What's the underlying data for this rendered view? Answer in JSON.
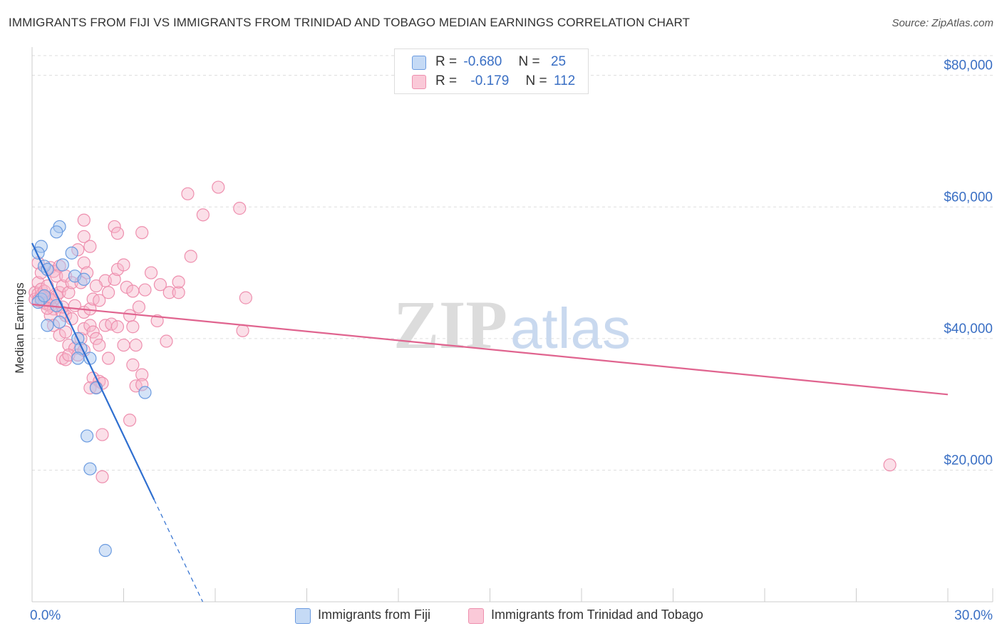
{
  "header": {
    "title": "IMMIGRANTS FROM FIJI VS IMMIGRANTS FROM TRINIDAD AND TOBAGO MEDIAN EARNINGS CORRELATION CHART",
    "source": "Source: ZipAtlas.com"
  },
  "watermark": {
    "zip": "ZIP",
    "atlas": "atlas"
  },
  "legend": {
    "fiji": {
      "r_label": "R =",
      "r_value": "-0.680",
      "n_label": "N =",
      "n_value": "25"
    },
    "tt": {
      "r_label": "R =",
      "r_value": "-0.179",
      "n_label": "N =",
      "n_value": "112"
    }
  },
  "bottom_legend": {
    "fiji": "Immigrants from Fiji",
    "tt": "Immigrants from Trinidad and Tobago"
  },
  "colors": {
    "fiji_fill": "#a9c7f0",
    "fiji_stroke": "#6b9be0",
    "fiji_line": "#2f6fd0",
    "tt_fill": "#f7b8cb",
    "tt_stroke": "#ee8fae",
    "tt_line": "#e0648f",
    "tick_label": "#3a6fc4",
    "grid": "#dddddd"
  },
  "chart_data": {
    "type": "scatter",
    "title": "IMMIGRANTS FROM FIJI VS IMMIGRANTS FROM TRINIDAD AND TOBAGO MEDIAN EARNINGS CORRELATION CHART",
    "xlabel": "",
    "ylabel": "Median Earnings",
    "xlim": [
      0,
      30
    ],
    "ylim": [
      0,
      83000
    ],
    "x_tick_labels": [
      {
        "value": 0,
        "label": "0.0%"
      },
      {
        "value": 30,
        "label": "30.0%"
      }
    ],
    "y_ticks": [
      {
        "value": 20000,
        "label": "$20,000"
      },
      {
        "value": 40000,
        "label": "$40,000"
      },
      {
        "value": 60000,
        "label": "$60,000"
      },
      {
        "value": 80000,
        "label": "$80,000"
      }
    ],
    "series": [
      {
        "name": "Immigrants from Fiji",
        "color": "#a9c7f0",
        "points": [
          [
            0.3,
            54000
          ],
          [
            0.2,
            53000
          ],
          [
            0.4,
            51000
          ],
          [
            0.5,
            50500
          ],
          [
            0.3,
            46000
          ],
          [
            0.2,
            45500
          ],
          [
            0.5,
            42000
          ],
          [
            0.8,
            45000
          ],
          [
            0.9,
            42500
          ],
          [
            0.9,
            57000
          ],
          [
            0.8,
            56200
          ],
          [
            1.0,
            51200
          ],
          [
            1.3,
            53000
          ],
          [
            1.4,
            49500
          ],
          [
            1.7,
            49000
          ],
          [
            1.5,
            40000
          ],
          [
            1.6,
            38500
          ],
          [
            1.5,
            37000
          ],
          [
            1.9,
            37000
          ],
          [
            2.1,
            32500
          ],
          [
            3.7,
            31800
          ],
          [
            1.8,
            25200
          ],
          [
            1.9,
            20200
          ],
          [
            2.4,
            7800
          ],
          [
            0.4,
            46500
          ]
        ],
        "trend": {
          "x1": 0.0,
          "y1": 54500,
          "x2": 4.0,
          "y2": 15500,
          "dash_to_x": 6.0,
          "dash_to_y": -4000
        }
      },
      {
        "name": "Immigrants from Trinidad and Tobago",
        "color": "#f7b8cb",
        "points": [
          [
            0.1,
            47000
          ],
          [
            0.1,
            46000
          ],
          [
            0.2,
            46800
          ],
          [
            0.2,
            45800
          ],
          [
            0.3,
            46600
          ],
          [
            0.3,
            45600
          ],
          [
            0.4,
            46400
          ],
          [
            0.4,
            45400
          ],
          [
            0.5,
            46200
          ],
          [
            0.5,
            45200
          ],
          [
            0.6,
            46000
          ],
          [
            0.6,
            45000
          ],
          [
            0.7,
            45800
          ],
          [
            0.2,
            48500
          ],
          [
            0.3,
            47500
          ],
          [
            0.4,
            47200
          ],
          [
            0.5,
            48000
          ],
          [
            0.7,
            44500
          ],
          [
            0.8,
            46500
          ],
          [
            0.9,
            47000
          ],
          [
            0.6,
            50800
          ],
          [
            0.7,
            50200
          ],
          [
            0.9,
            51000
          ],
          [
            0.8,
            49500
          ],
          [
            1.0,
            48000
          ],
          [
            1.1,
            49500
          ],
          [
            1.2,
            47000
          ],
          [
            1.3,
            48500
          ],
          [
            1.4,
            45000
          ],
          [
            1.0,
            44000
          ],
          [
            1.1,
            43500
          ],
          [
            1.3,
            43000
          ],
          [
            0.2,
            51500
          ],
          [
            0.3,
            50000
          ],
          [
            0.6,
            43500
          ],
          [
            0.7,
            42000
          ],
          [
            0.9,
            40500
          ],
          [
            1.1,
            41000
          ],
          [
            1.2,
            39000
          ],
          [
            1.4,
            38500
          ],
          [
            1.6,
            40000
          ],
          [
            1.7,
            41500
          ],
          [
            1.9,
            42000
          ],
          [
            2.0,
            41000
          ],
          [
            2.1,
            40000
          ],
          [
            2.2,
            39000
          ],
          [
            1.0,
            37000
          ],
          [
            1.1,
            36800
          ],
          [
            1.2,
            37500
          ],
          [
            1.5,
            37500
          ],
          [
            1.7,
            38200
          ],
          [
            2.4,
            42000
          ],
          [
            2.6,
            42200
          ],
          [
            2.8,
            41800
          ],
          [
            3.2,
            43500
          ],
          [
            3.3,
            41800
          ],
          [
            3.0,
            39000
          ],
          [
            3.4,
            39000
          ],
          [
            3.3,
            36000
          ],
          [
            3.6,
            34500
          ],
          [
            3.4,
            32800
          ],
          [
            3.6,
            33000
          ],
          [
            2.0,
            34000
          ],
          [
            2.2,
            33500
          ],
          [
            2.3,
            33200
          ],
          [
            2.5,
            37000
          ],
          [
            1.9,
            32500
          ],
          [
            2.1,
            32600
          ],
          [
            1.7,
            44000
          ],
          [
            1.9,
            44500
          ],
          [
            2.0,
            46000
          ],
          [
            2.2,
            45800
          ],
          [
            2.4,
            48800
          ],
          [
            2.7,
            49000
          ],
          [
            2.8,
            50500
          ],
          [
            3.0,
            51200
          ],
          [
            3.1,
            47800
          ],
          [
            3.3,
            47200
          ],
          [
            3.5,
            44800
          ],
          [
            3.7,
            47400
          ],
          [
            3.9,
            50000
          ],
          [
            4.2,
            48200
          ],
          [
            4.5,
            47000
          ],
          [
            4.8,
            47000
          ],
          [
            4.8,
            48600
          ],
          [
            4.1,
            42700
          ],
          [
            4.4,
            39600
          ],
          [
            2.7,
            57000
          ],
          [
            2.8,
            56000
          ],
          [
            3.6,
            56100
          ],
          [
            1.7,
            58000
          ],
          [
            1.7,
            55500
          ],
          [
            1.9,
            54000
          ],
          [
            1.5,
            53500
          ],
          [
            1.7,
            51500
          ],
          [
            1.8,
            50000
          ],
          [
            1.6,
            48500
          ],
          [
            2.1,
            48000
          ],
          [
            2.5,
            47000
          ],
          [
            5.1,
            62000
          ],
          [
            6.1,
            63000
          ],
          [
            5.6,
            58800
          ],
          [
            6.8,
            59800
          ],
          [
            5.2,
            52500
          ],
          [
            7.0,
            46200
          ],
          [
            6.9,
            41200
          ],
          [
            2.3,
            25400
          ],
          [
            2.3,
            19000
          ],
          [
            3.2,
            27600
          ],
          [
            28.1,
            20800
          ],
          [
            0.5,
            44600
          ],
          [
            1.0,
            44800
          ]
        ],
        "trend": {
          "x1": 0.0,
          "y1": 45200,
          "x2": 30.0,
          "y2": 31500
        }
      }
    ]
  }
}
